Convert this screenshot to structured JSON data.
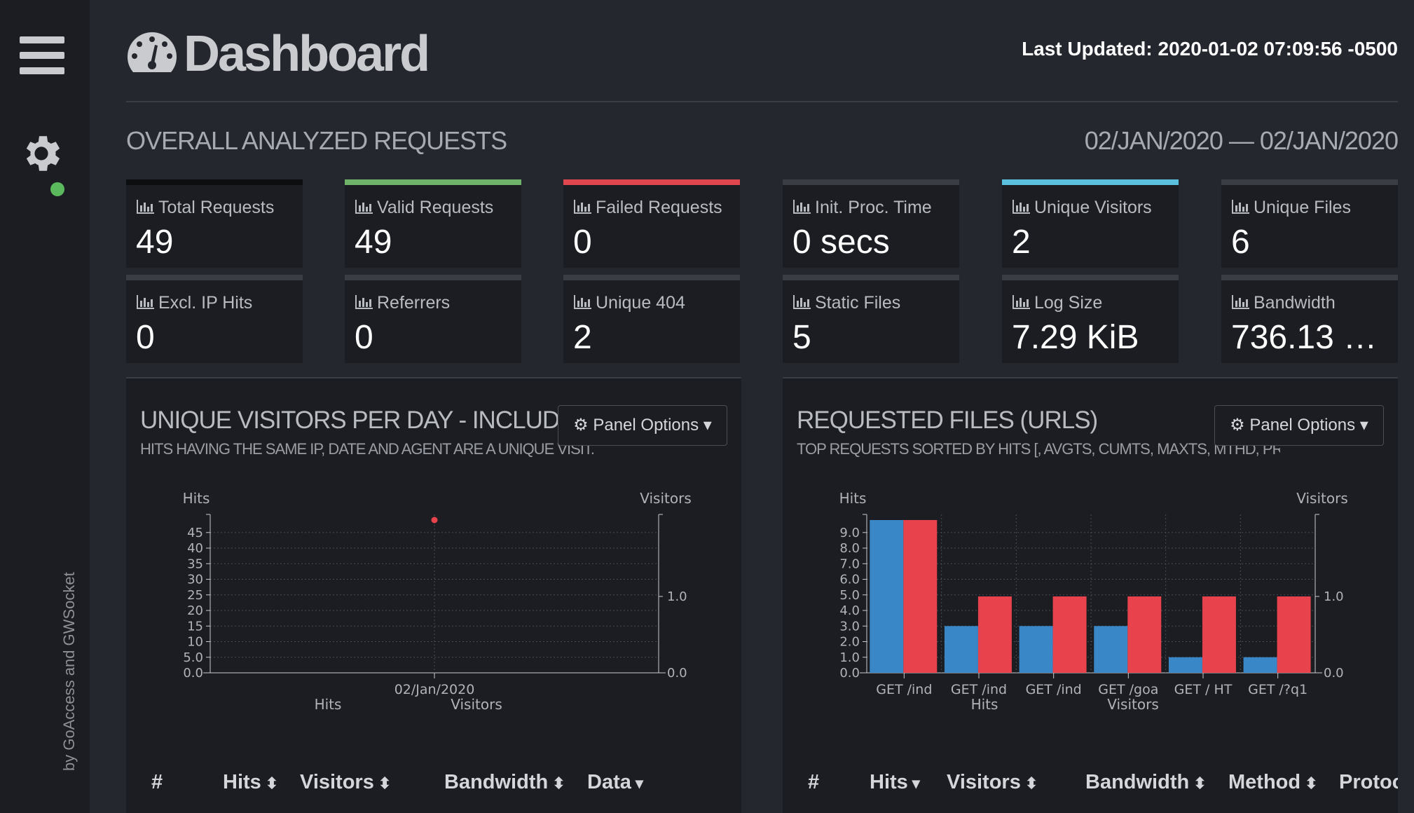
{
  "sidebar": {
    "credit_prefix": "by ",
    "credit_goaccess": "GoAccess",
    "credit_and": " and ",
    "credit_gwsocket": "GWSocket",
    "status_color": "#5cb85c"
  },
  "header": {
    "title": "Dashboard",
    "last_updated": "Last Updated: 2020-01-02 07:09:56 -0500"
  },
  "overall": {
    "title": "OVERALL ANALYZED REQUESTS",
    "date_range": "02/JAN/2020 — 02/JAN/2020",
    "cards": [
      {
        "label": "Total Requests",
        "value": "49",
        "accent": "#0d0e10"
      },
      {
        "label": "Valid Requests",
        "value": "49",
        "accent": "#6fb36b"
      },
      {
        "label": "Failed Requests",
        "value": "0",
        "accent": "#e0464e"
      },
      {
        "label": "Init. Proc. Time",
        "value": "0 secs",
        "accent": "#3a3d44"
      },
      {
        "label": "Unique Visitors",
        "value": "2",
        "accent": "#5bc0de"
      },
      {
        "label": "Unique Files",
        "value": "6",
        "accent": "#3a3d44"
      },
      {
        "label": "Excl. IP Hits",
        "value": "0",
        "accent": "#3a3d44"
      },
      {
        "label": "Referrers",
        "value": "0",
        "accent": "#3a3d44"
      },
      {
        "label": "Unique 404",
        "value": "2",
        "accent": "#3a3d44"
      },
      {
        "label": "Static Files",
        "value": "5",
        "accent": "#3a3d44"
      },
      {
        "label": "Log Size",
        "value": "7.29 KiB",
        "accent": "#3a3d44"
      },
      {
        "label": "Bandwidth",
        "value": "736.13 …",
        "accent": "#3a3d44"
      }
    ]
  },
  "visitors_panel": {
    "title": "UNIQUE VISITORS PER DAY - INCLUDING SPIDERS",
    "subtitle": "HITS HAVING THE SAME IP, DATE AND AGENT ARE A UNIQUE VISIT.",
    "options_label": "Panel Options",
    "columns": [
      "#",
      "Hits",
      "Visitors",
      "Bandwidth",
      "Data"
    ]
  },
  "files_panel": {
    "title": "REQUESTED FILES (URLS)",
    "subtitle": "TOP REQUESTS SORTED BY HITS [, AVGTS, CUMTS, MAXTS, MTHD, PROTO]",
    "options_label": "Panel Options",
    "columns": [
      "#",
      "Hits",
      "Visitors",
      "Bandwidth",
      "Method",
      "Protocol"
    ]
  },
  "colors": {
    "hits": "#3a87c8",
    "visitors": "#e8434c"
  },
  "chart_data": [
    {
      "type": "scatter",
      "ylabel": "Hits",
      "y2label": "Visitors",
      "categories": [
        "02/Jan/2020"
      ],
      "series": [
        {
          "name": "Hits",
          "values": [
            49
          ]
        },
        {
          "name": "Visitors",
          "values": [
            2
          ]
        }
      ],
      "yticks": [
        "0.0",
        "5.0",
        "10",
        "15",
        "20",
        "25",
        "30",
        "35",
        "40",
        "45"
      ],
      "y2ticks": [
        "0.0",
        "1.0"
      ],
      "ylim": [
        0,
        49
      ],
      "y2lim": [
        0,
        2
      ],
      "grid": true,
      "legend": "bottom"
    },
    {
      "type": "bar",
      "ylabel": "Hits",
      "y2label": "Visitors",
      "categories": [
        "GET /ind",
        "GET /ind",
        "GET /ind",
        "GET /goa",
        "GET / HT",
        "GET /?q1"
      ],
      "series": [
        {
          "name": "Hits",
          "values": [
            9.8,
            3,
            3,
            3,
            1,
            1
          ]
        },
        {
          "name": "Visitors",
          "values": [
            2,
            1,
            1,
            1,
            1,
            1
          ]
        }
      ],
      "yticks": [
        "0.0",
        "1.0",
        "2.0",
        "3.0",
        "4.0",
        "5.0",
        "6.0",
        "7.0",
        "8.0",
        "9.0"
      ],
      "y2ticks": [
        "0.0",
        "1.0"
      ],
      "ylim": [
        0,
        9.8
      ],
      "y2lim": [
        0,
        2
      ],
      "grid": true,
      "legend": "bottom"
    }
  ]
}
